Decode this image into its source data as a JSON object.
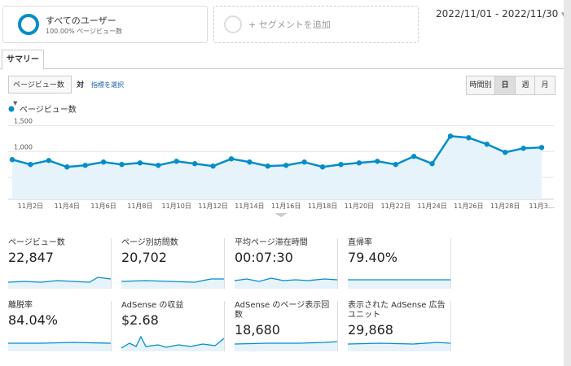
{
  "segments": [
    {
      "title": "すべてのユーザー",
      "subtitle": "100.00% ページビュー数"
    },
    {
      "title": "+ セグメントを追加"
    }
  ],
  "date_range": "2022/11/01 - 2022/11/30",
  "tab": "サマリー",
  "metric_select": "ページビュー数",
  "vs": "対",
  "select_metric": "指標を選択",
  "granularity": [
    "時間別",
    "日",
    "週",
    "月"
  ],
  "chart_data": {
    "type": "line",
    "categories": [
      null,
      "11月2日",
      null,
      "11月4日",
      null,
      "11月6日",
      null,
      "11月8日",
      null,
      "11月10日",
      null,
      "11月12日",
      null,
      "11月14日",
      null,
      "11月16日",
      null,
      "11月18日",
      null,
      "11月20日",
      null,
      "11月22日",
      null,
      "11月24日",
      null,
      "11月26日",
      null,
      "11月28日",
      null,
      "11月3..."
    ],
    "series": [
      {
        "name": "ページビュー数",
        "color": "#058dc7",
        "values": [
          844,
          750,
          828,
          703,
          734,
          797,
          750,
          781,
          734,
          812,
          766,
          719,
          859,
          797,
          719,
          734,
          797,
          703,
          750,
          781,
          812,
          750,
          906,
          766,
          1297,
          1266,
          1141,
          984,
          1062,
          1078
        ]
      }
    ],
    "ylim": [
      80,
      1600
    ],
    "yticks": [
      500,
      {
        "value": 1000,
        "label": "1,000"
      },
      {
        "value": 1500,
        "label": "1,500"
      }
    ],
    "grid": true
  },
  "metrics": [
    {
      "label": "ページビュー数",
      "value": "22,847"
    },
    {
      "label": "ページ別訪問数",
      "value": "20,702"
    },
    {
      "label": "平均ページ滞在時間",
      "value": "00:07:30"
    },
    {
      "label": "直帰率",
      "value": "79.40%"
    },
    {
      "label": "離脱率",
      "value": "84.04%"
    },
    {
      "label": "AdSense の収益",
      "value": "$2.68"
    },
    {
      "label": "AdSense のページ表示回数",
      "value": "18,680"
    },
    {
      "label": "表示された AdSense 広告ユニット",
      "value": "29,868"
    }
  ]
}
